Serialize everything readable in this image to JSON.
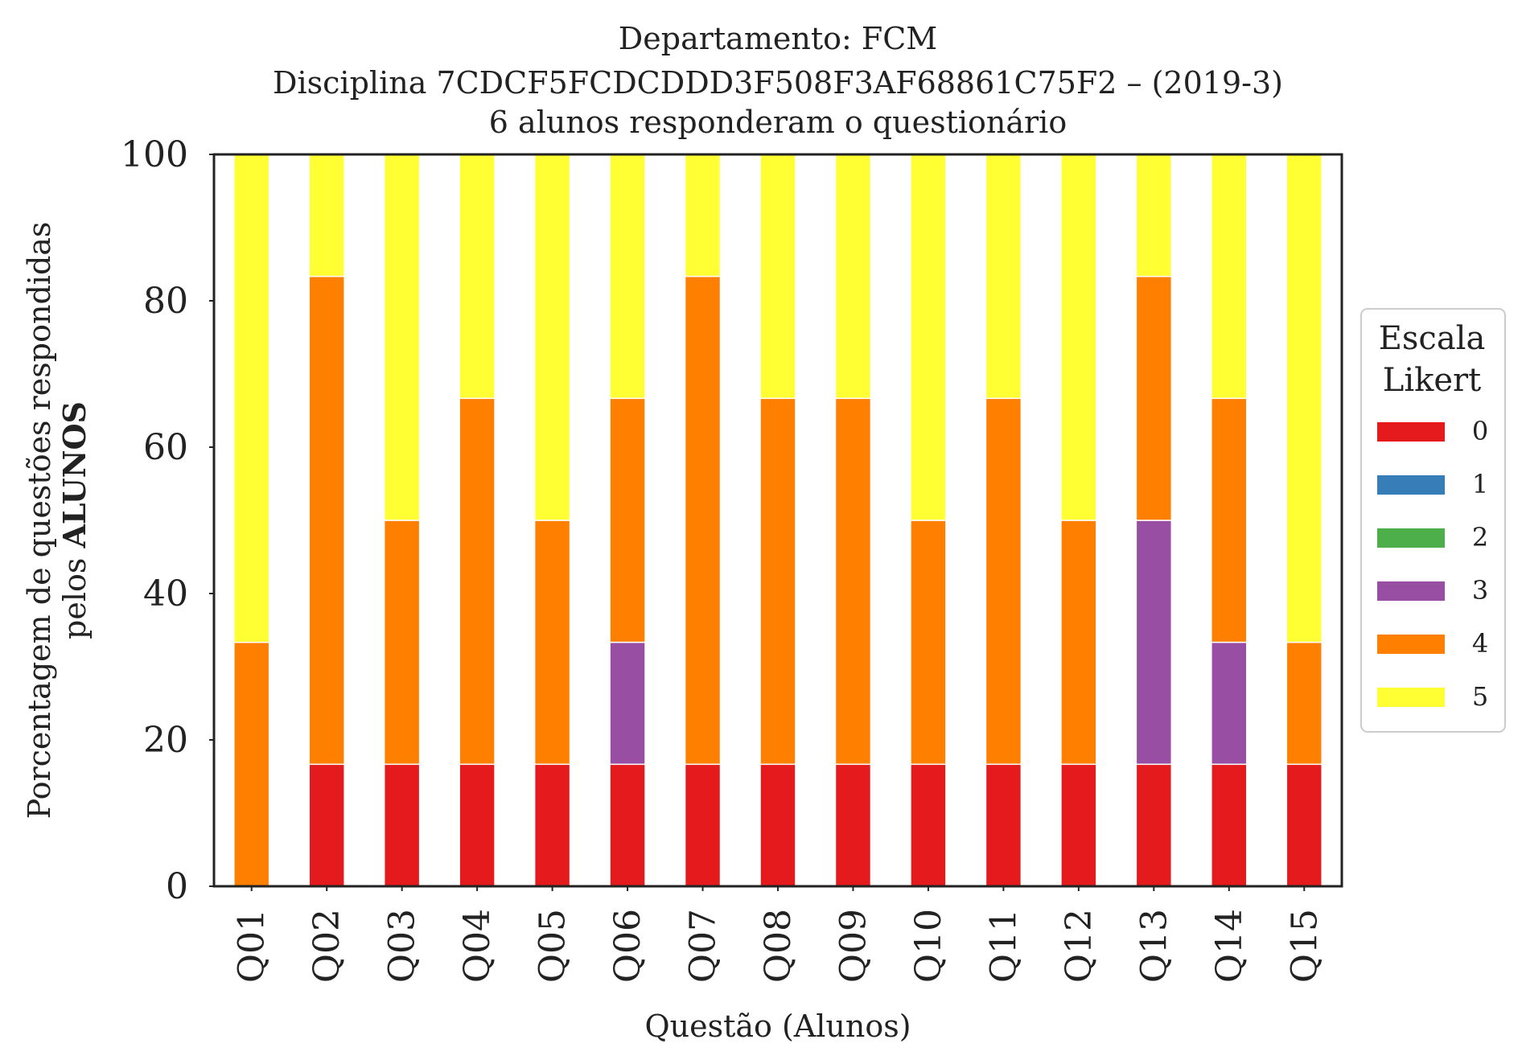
{
  "chart_data": {
    "type": "bar",
    "stacked": true,
    "title_lines": [
      "Departamento: FCM",
      "Disciplina 7CDCF5FCDCDDD3F508F3AF68861C75F2 – (2019-3)",
      "6 alunos responderam o questionário"
    ],
    "xlabel": "Questão (Alunos)",
    "ylabel_line1": "Porcentagem de questões respondidas",
    "ylabel_line2_prefix": "pelos ",
    "ylabel_line2_bold": "ALUNOS",
    "ylim": [
      0,
      100
    ],
    "yticks": [
      0,
      20,
      40,
      60,
      80,
      100
    ],
    "grid": false,
    "legend": {
      "title_lines": [
        "Escala",
        "Likert"
      ],
      "placement": "center-right"
    },
    "categories": [
      "Q01",
      "Q02",
      "Q03",
      "Q04",
      "Q05",
      "Q06",
      "Q07",
      "Q08",
      "Q09",
      "Q10",
      "Q11",
      "Q12",
      "Q13",
      "Q14",
      "Q15"
    ],
    "series": [
      {
        "name": "0",
        "color": "#e41a1c",
        "values": [
          0,
          16.67,
          16.67,
          16.67,
          16.67,
          16.67,
          16.67,
          16.67,
          16.67,
          16.67,
          16.67,
          16.67,
          16.67,
          16.67,
          16.67
        ]
      },
      {
        "name": "1",
        "color": "#377eb8",
        "values": [
          0,
          0,
          0,
          0,
          0,
          0,
          0,
          0,
          0,
          0,
          0,
          0,
          0,
          0,
          0
        ]
      },
      {
        "name": "2",
        "color": "#4daf4a",
        "values": [
          0,
          0,
          0,
          0,
          0,
          0,
          0,
          0,
          0,
          0,
          0,
          0,
          0,
          0,
          0
        ]
      },
      {
        "name": "3",
        "color": "#984ea3",
        "values": [
          0,
          0,
          0,
          0,
          0,
          16.67,
          0,
          0,
          0,
          0,
          0,
          0,
          33.33,
          16.67,
          0
        ]
      },
      {
        "name": "4",
        "color": "#ff7f00",
        "values": [
          33.33,
          66.67,
          33.33,
          50,
          33.33,
          33.33,
          66.67,
          50,
          50,
          33.33,
          50,
          33.33,
          33.33,
          33.33,
          16.67
        ]
      },
      {
        "name": "5",
        "color": "#ffff33",
        "values": [
          66.67,
          16.67,
          50,
          33.33,
          50,
          33.33,
          16.67,
          33.33,
          33.33,
          50,
          33.33,
          50,
          16.67,
          33.33,
          66.67
        ]
      }
    ]
  }
}
